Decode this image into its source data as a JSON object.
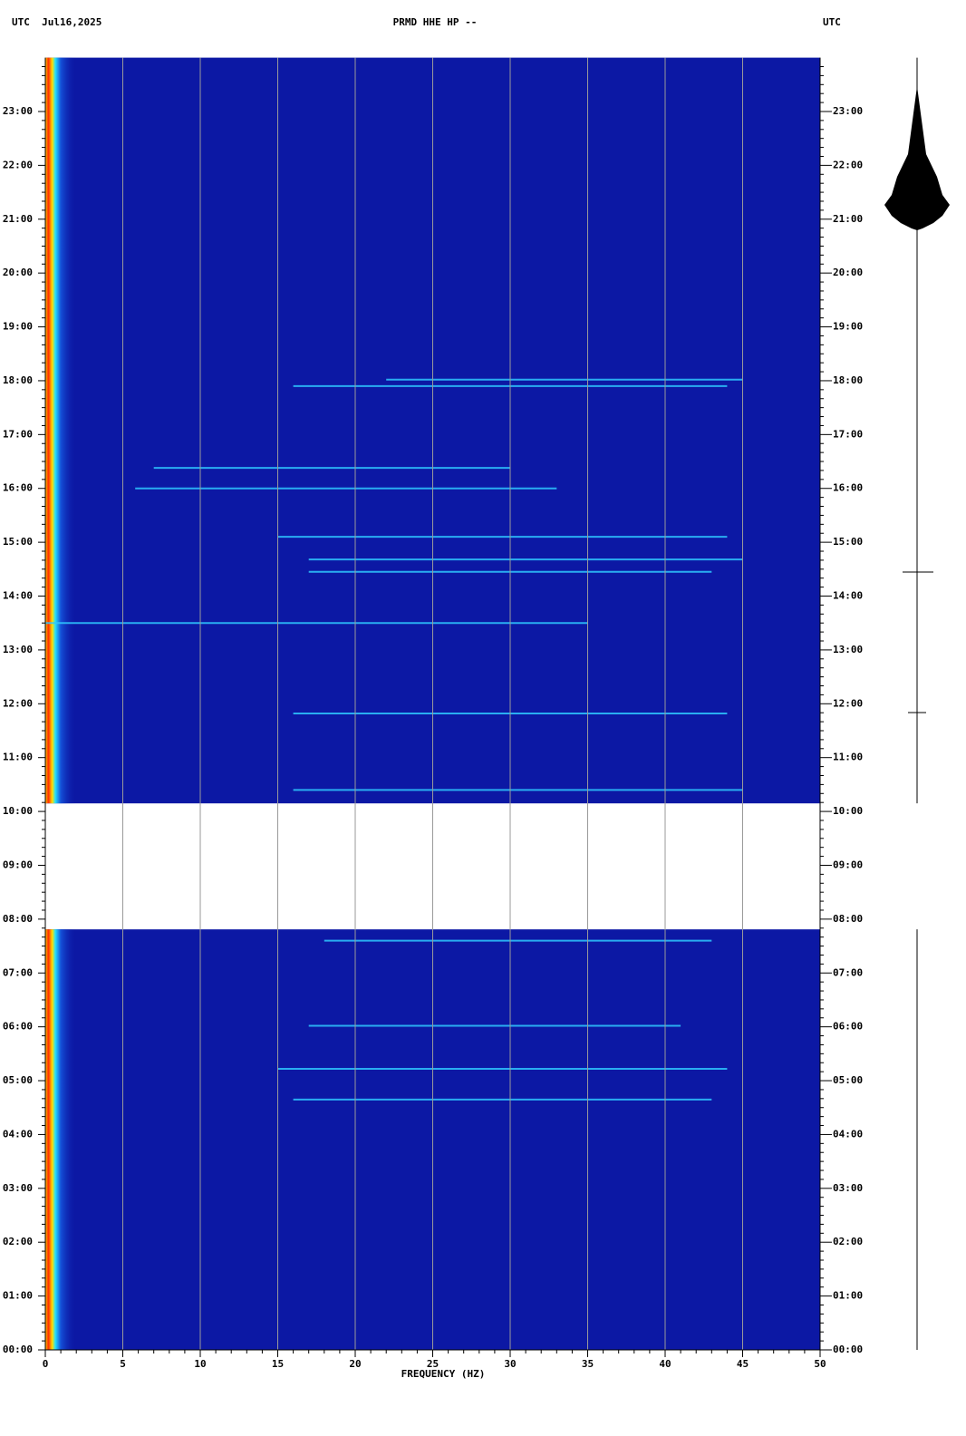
{
  "chart_data": {
    "type": "spectrogram",
    "header_left": "UTC  Jul16,2025",
    "title": "PRMD HHE HP --",
    "header_right": "UTC",
    "x_label": "FREQUENCY (HZ)",
    "xlim": [
      0,
      50
    ],
    "xticks": [
      0,
      5,
      10,
      15,
      20,
      25,
      30,
      35,
      40,
      45,
      50
    ],
    "ylim": [
      0,
      24
    ],
    "yticks": [
      {
        "value": 0,
        "label": "00:00"
      },
      {
        "value": 1,
        "label": "01:00"
      },
      {
        "value": 2,
        "label": "02:00"
      },
      {
        "value": 3,
        "label": "03:00"
      },
      {
        "value": 4,
        "label": "04:00"
      },
      {
        "value": 5,
        "label": "05:00"
      },
      {
        "value": 6,
        "label": "06:00"
      },
      {
        "value": 7,
        "label": "07:00"
      },
      {
        "value": 8,
        "label": "08:00"
      },
      {
        "value": 9,
        "label": "09:00"
      },
      {
        "value": 10,
        "label": "10:00"
      },
      {
        "value": 11,
        "label": "11:00"
      },
      {
        "value": 12,
        "label": "12:00"
      },
      {
        "value": 13,
        "label": "13:00"
      },
      {
        "value": 14,
        "label": "14:00"
      },
      {
        "value": 15,
        "label": "15:00"
      },
      {
        "value": 16,
        "label": "16:00"
      },
      {
        "value": 17,
        "label": "17:00"
      },
      {
        "value": 18,
        "label": "18:00"
      },
      {
        "value": 19,
        "label": "19:00"
      },
      {
        "value": 20,
        "label": "20:00"
      },
      {
        "value": 21,
        "label": "21:00"
      },
      {
        "value": 22,
        "label": "22:00"
      },
      {
        "value": 23,
        "label": "23:00"
      }
    ],
    "grid": true,
    "background_color": "#0c18a4",
    "feature_color": "#2fc8ff",
    "data_segments": [
      {
        "start": 0,
        "end": 7.81
      },
      {
        "start": 10.15,
        "end": 24
      }
    ],
    "features": [
      {
        "time": 16.0,
        "f0": 5.8,
        "f1": 33
      },
      {
        "time": 16.38,
        "f0": 7,
        "f1": 30
      },
      {
        "time": 14.45,
        "f0": 17,
        "f1": 43
      },
      {
        "time": 14.68,
        "f0": 17,
        "f1": 45
      },
      {
        "time": 15.1,
        "f0": 15,
        "f1": 44
      },
      {
        "time": 17.9,
        "f0": 16,
        "f1": 44
      },
      {
        "time": 18.02,
        "f0": 22,
        "f1": 45
      },
      {
        "time": 11.82,
        "f0": 16,
        "f1": 44
      },
      {
        "time": 10.4,
        "f0": 16,
        "f1": 45
      },
      {
        "time": 13.5,
        "f0": 0,
        "f1": 35
      },
      {
        "time": 5.22,
        "f0": 15,
        "f1": 44
      },
      {
        "time": 6.02,
        "f0": 17,
        "f1": 41
      },
      {
        "time": 4.65,
        "f0": 16,
        "f1": 43
      },
      {
        "time": 7.6,
        "f0": 18,
        "f1": 43
      }
    ]
  }
}
